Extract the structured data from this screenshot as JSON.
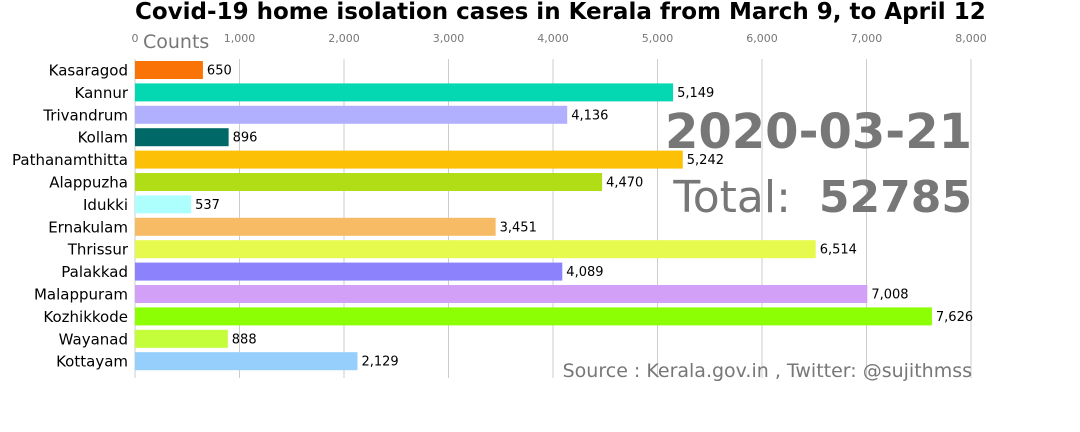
{
  "chart_data": {
    "type": "bar",
    "orientation": "horizontal",
    "title": "Covid-19 home isolation cases in Kerala from March 9, to April 12",
    "xlabel": "Counts",
    "xlim": [
      0,
      8000
    ],
    "xticks": [
      0,
      1000,
      2000,
      3000,
      4000,
      5000,
      6000,
      7000,
      8000
    ],
    "xtick_labels": [
      "0",
      "1,000",
      "2,000",
      "3,000",
      "4,000",
      "5,000",
      "6,000",
      "7,000",
      "8,000"
    ],
    "grid": true,
    "date": "2020-03-21",
    "total_label": "Total:",
    "total_value": "52785",
    "source": "Source : Kerala.gov.in , Twitter: @sujithmss",
    "categories": [
      "Kasaragod",
      "Kannur",
      "Trivandrum",
      "Kollam",
      "Pathanamthitta",
      "Alappuzha",
      "Idukki",
      "Ernakulam",
      "Thrissur",
      "Palakkad",
      "Malappuram",
      "Kozhikkode",
      "Wayanad",
      "Kottayam"
    ],
    "values": [
      650,
      5149,
      4136,
      896,
      5242,
      4470,
      537,
      3451,
      6514,
      4089,
      7008,
      7626,
      888,
      2129
    ],
    "value_labels": [
      "650",
      "5,149",
      "4,136",
      "896",
      "5,242",
      "4,470",
      "537",
      "3,451",
      "6,514",
      "4,089",
      "7,008",
      "7,626",
      "888",
      "2,129"
    ],
    "colors": [
      "#f97306",
      "#04d8b2",
      "#b0b0ff",
      "#016868",
      "#fcc006",
      "#b0dd16",
      "#acfffc",
      "#f7bb66",
      "#e6f94d",
      "#8c82fc",
      "#d3a0f8",
      "#8cff05",
      "#c4fd3a",
      "#96cffc"
    ]
  }
}
